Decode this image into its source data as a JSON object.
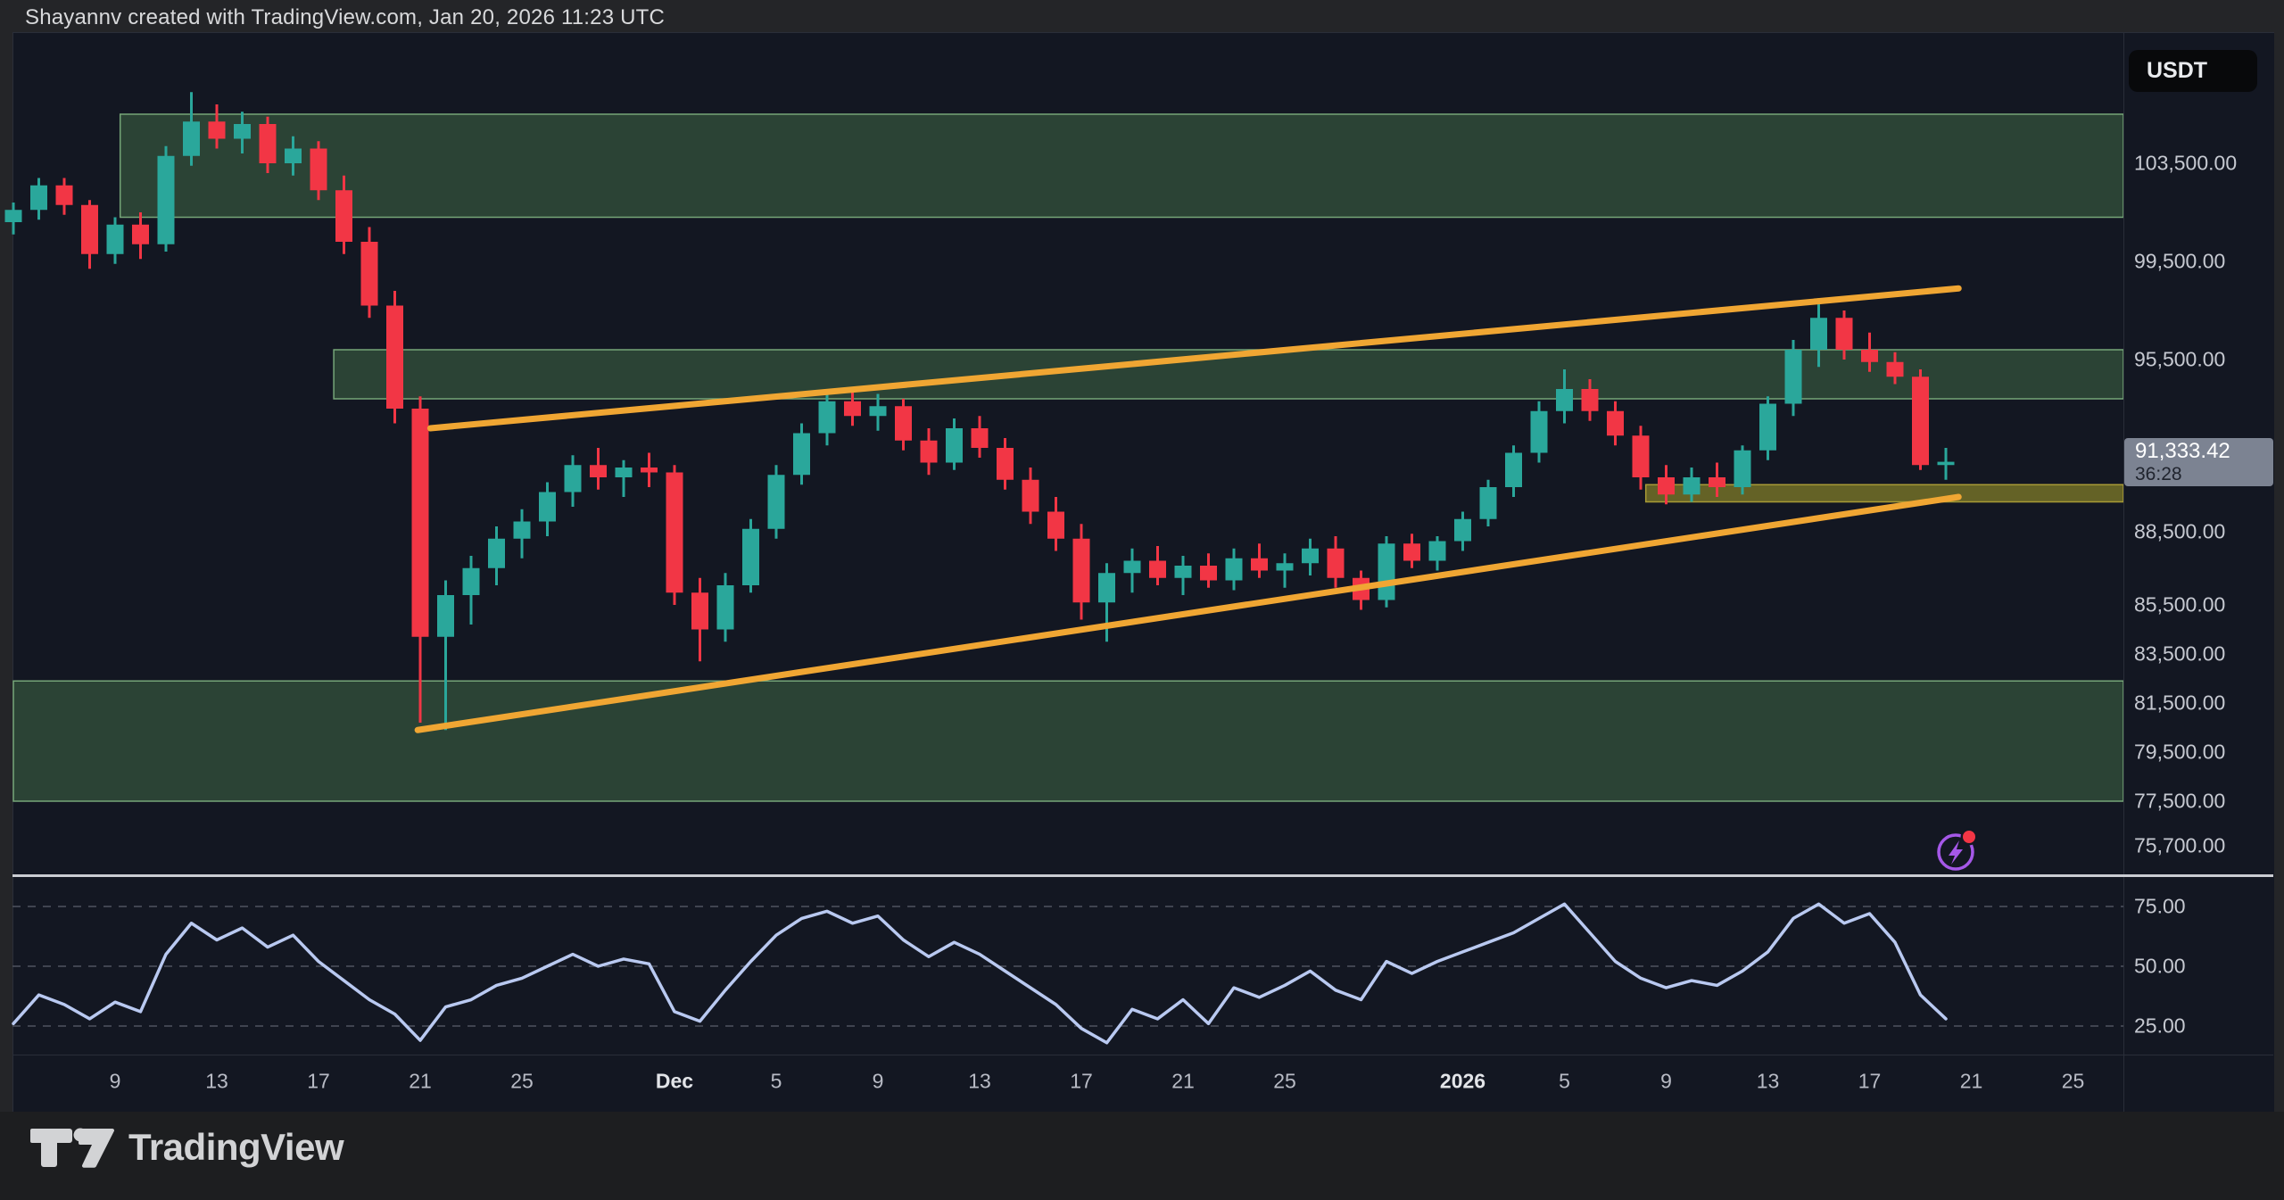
{
  "header": {
    "title": "Shayannv created with TradingView.com, Jan 20, 2026 11:23 UTC"
  },
  "price_scale": {
    "currency_badge": "USDT",
    "last_price": "91,333.42",
    "last_price_value": 91333.42,
    "countdown": "36:28",
    "labels": [
      {
        "text": "103,500.00",
        "value": 103500
      },
      {
        "text": "99,500.00",
        "value": 99500
      },
      {
        "text": "95,500.00",
        "value": 95500
      },
      {
        "text": "88,500.00",
        "value": 88500
      },
      {
        "text": "85,500.00",
        "value": 85500
      },
      {
        "text": "83,500.00",
        "value": 83500
      },
      {
        "text": "81,500.00",
        "value": 81500
      },
      {
        "text": "79,500.00",
        "value": 79500
      },
      {
        "text": "77,500.00",
        "value": 77500
      },
      {
        "text": "75,700.00",
        "value": 75700
      }
    ]
  },
  "rsi_scale": {
    "labels": [
      {
        "text": "75.00",
        "value": 75
      },
      {
        "text": "50.00",
        "value": 50
      },
      {
        "text": "25.00",
        "value": 25
      }
    ]
  },
  "time_axis": {
    "ticks": [
      {
        "label": "9",
        "day": 4,
        "bold": false
      },
      {
        "label": "13",
        "day": 8,
        "bold": false
      },
      {
        "label": "17",
        "day": 12,
        "bold": false
      },
      {
        "label": "21",
        "day": 16,
        "bold": false
      },
      {
        "label": "25",
        "day": 20,
        "bold": false
      },
      {
        "label": "Dec",
        "day": 26,
        "bold": true
      },
      {
        "label": "5",
        "day": 30,
        "bold": false
      },
      {
        "label": "9",
        "day": 34,
        "bold": false
      },
      {
        "label": "13",
        "day": 38,
        "bold": false
      },
      {
        "label": "17",
        "day": 42,
        "bold": false
      },
      {
        "label": "21",
        "day": 46,
        "bold": false
      },
      {
        "label": "25",
        "day": 50,
        "bold": false
      },
      {
        "label": "2026",
        "day": 57,
        "bold": true
      },
      {
        "label": "5",
        "day": 61,
        "bold": false
      },
      {
        "label": "9",
        "day": 65,
        "bold": false
      },
      {
        "label": "13",
        "day": 69,
        "bold": false
      },
      {
        "label": "17",
        "day": 73,
        "bold": false
      },
      {
        "label": "21",
        "day": 77,
        "bold": false
      },
      {
        "label": "25",
        "day": 81,
        "bold": false
      }
    ]
  },
  "footer": {
    "brand": "TradingView"
  },
  "colors": {
    "up": "#2aa79b",
    "down": "#f23645",
    "zone_fill": "rgba(100,170,100,0.30)",
    "zone_border": "#76a678",
    "band_fill": "rgba(200,190,45,0.45)",
    "band_border": "#a89b35",
    "trendline": "#f0a633",
    "rsi_line": "#b9c9f1",
    "grid_dashed": "#4f545f",
    "badge_bg": "#7c8392",
    "plot_bg": "#131722"
  },
  "chart_data": {
    "type": "candlestick",
    "interval": "1D",
    "quote_currency": "USDT",
    "visible_price_range": [
      75700,
      107000
    ],
    "rsi_levels": [
      25,
      50,
      75
    ],
    "legend_position": "none",
    "grid": "rsi-dashed-only",
    "dates": [
      "Nov 5",
      "Nov 6",
      "Nov 7",
      "Nov 8",
      "Nov 9",
      "Nov 10",
      "Nov 11",
      "Nov 12",
      "Nov 13",
      "Nov 14",
      "Nov 15",
      "Nov 16",
      "Nov 17",
      "Nov 18",
      "Nov 19",
      "Nov 20",
      "Nov 21",
      "Nov 22",
      "Nov 23",
      "Nov 24",
      "Nov 25",
      "Nov 26",
      "Nov 27",
      "Nov 28",
      "Nov 29",
      "Nov 30",
      "Dec 1",
      "Dec 2",
      "Dec 3",
      "Dec 4",
      "Dec 5",
      "Dec 6",
      "Dec 7",
      "Dec 8",
      "Dec 9",
      "Dec 10",
      "Dec 11",
      "Dec 12",
      "Dec 13",
      "Dec 14",
      "Dec 15",
      "Dec 16",
      "Dec 17",
      "Dec 18",
      "Dec 19",
      "Dec 20",
      "Dec 21",
      "Dec 22",
      "Dec 23",
      "Dec 24",
      "Dec 25",
      "Dec 26",
      "Dec 27",
      "Dec 28",
      "Dec 29",
      "Dec 30",
      "Dec 31",
      "Jan 1",
      "Jan 2",
      "Jan 3",
      "Jan 4",
      "Jan 5",
      "Jan 6",
      "Jan 7",
      "Jan 8",
      "Jan 9",
      "Jan 10",
      "Jan 11",
      "Jan 12",
      "Jan 13",
      "Jan 14",
      "Jan 15",
      "Jan 16",
      "Jan 17",
      "Jan 18",
      "Jan 19",
      "Jan 20"
    ],
    "candles": [
      [
        101100,
        101900,
        100600,
        101600
      ],
      [
        101600,
        102900,
        101200,
        102600
      ],
      [
        102600,
        102900,
        101400,
        101800
      ],
      [
        101800,
        102000,
        99200,
        99800
      ],
      [
        99800,
        101300,
        99400,
        101000
      ],
      [
        101000,
        101500,
        99600,
        100200
      ],
      [
        100200,
        104200,
        99900,
        103800
      ],
      [
        103800,
        106400,
        103400,
        105200
      ],
      [
        105200,
        105900,
        104100,
        104500
      ],
      [
        104500,
        105600,
        103900,
        105100
      ],
      [
        105100,
        105400,
        103100,
        103500
      ],
      [
        103500,
        104600,
        103000,
        104100
      ],
      [
        104100,
        104400,
        102000,
        102400
      ],
      [
        102400,
        103000,
        99800,
        100300
      ],
      [
        100300,
        100900,
        97200,
        97700
      ],
      [
        97700,
        98300,
        92900,
        93500
      ],
      [
        93500,
        94000,
        80700,
        84200
      ],
      [
        84200,
        86500,
        80400,
        85900
      ],
      [
        85900,
        87500,
        84700,
        87000
      ],
      [
        87000,
        88700,
        86300,
        88200
      ],
      [
        88200,
        89400,
        87400,
        88900
      ],
      [
        88900,
        90500,
        88300,
        90100
      ],
      [
        90100,
        91600,
        89500,
        91200
      ],
      [
        91200,
        91900,
        90200,
        90700
      ],
      [
        90700,
        91400,
        89900,
        91100
      ],
      [
        91100,
        91700,
        90300,
        90900
      ],
      [
        90900,
        91200,
        85500,
        86000
      ],
      [
        86000,
        86600,
        83200,
        84500
      ],
      [
        84500,
        86800,
        84000,
        86300
      ],
      [
        86300,
        89000,
        86000,
        88600
      ],
      [
        88600,
        91200,
        88200,
        90800
      ],
      [
        90800,
        92900,
        90400,
        92500
      ],
      [
        92500,
        94200,
        92000,
        93800
      ],
      [
        93800,
        94300,
        92800,
        93200
      ],
      [
        93200,
        94100,
        92600,
        93600
      ],
      [
        93600,
        93900,
        91800,
        92200
      ],
      [
        92200,
        92700,
        90800,
        91300
      ],
      [
        91300,
        93100,
        91000,
        92700
      ],
      [
        92700,
        93200,
        91500,
        91900
      ],
      [
        91900,
        92300,
        90200,
        90600
      ],
      [
        90600,
        91100,
        88800,
        89300
      ],
      [
        89300,
        89900,
        87700,
        88200
      ],
      [
        88200,
        88800,
        84900,
        85600
      ],
      [
        85600,
        87200,
        84000,
        86800
      ],
      [
        86800,
        87800,
        86000,
        87300
      ],
      [
        87300,
        87900,
        86300,
        86600
      ],
      [
        86600,
        87500,
        85900,
        87100
      ],
      [
        87100,
        87600,
        86200,
        86500
      ],
      [
        86500,
        87800,
        86100,
        87400
      ],
      [
        87400,
        88000,
        86600,
        86900
      ],
      [
        86900,
        87600,
        86200,
        87200
      ],
      [
        87200,
        88200,
        86700,
        87800
      ],
      [
        87800,
        88300,
        86200,
        86600
      ],
      [
        86600,
        86900,
        85300,
        85700
      ],
      [
        85700,
        88300,
        85400,
        88000
      ],
      [
        88000,
        88400,
        87000,
        87300
      ],
      [
        87300,
        88300,
        86900,
        88100
      ],
      [
        88100,
        89300,
        87700,
        89000
      ],
      [
        89000,
        90600,
        88700,
        90300
      ],
      [
        90300,
        92000,
        89900,
        91700
      ],
      [
        91700,
        93800,
        91300,
        93400
      ],
      [
        93400,
        95100,
        92900,
        94300
      ],
      [
        94300,
        94700,
        93000,
        93400
      ],
      [
        93400,
        93800,
        92000,
        92400
      ],
      [
        92400,
        92800,
        90200,
        90700
      ],
      [
        90700,
        91200,
        89600,
        90000
      ],
      [
        90000,
        91100,
        89700,
        90700
      ],
      [
        90700,
        91300,
        89900,
        90300
      ],
      [
        90300,
        92000,
        90000,
        91800
      ],
      [
        91800,
        94000,
        91400,
        93700
      ],
      [
        93700,
        96300,
        93200,
        95900
      ],
      [
        95900,
        98000,
        95200,
        97200
      ],
      [
        97200,
        97500,
        95500,
        95900
      ],
      [
        95900,
        96600,
        95000,
        95400
      ],
      [
        95400,
        95800,
        94500,
        94800
      ],
      [
        94800,
        95100,
        91000,
        91200
      ],
      [
        91200,
        91900,
        90600,
        91333.42
      ]
    ],
    "rsi": [
      26,
      38,
      34,
      28,
      35,
      31,
      55,
      68,
      61,
      66,
      58,
      63,
      52,
      44,
      36,
      30,
      19,
      33,
      36,
      42,
      45,
      50,
      55,
      50,
      53,
      51,
      31,
      27,
      40,
      52,
      63,
      70,
      73,
      68,
      71,
      61,
      54,
      60,
      55,
      48,
      41,
      34,
      24,
      18,
      32,
      28,
      36,
      26,
      41,
      37,
      42,
      48,
      40,
      36,
      52,
      47,
      52,
      56,
      60,
      64,
      70,
      76,
      64,
      52,
      45,
      41,
      44,
      42,
      48,
      56,
      70,
      76,
      68,
      72,
      60,
      38,
      28
    ],
    "zones": [
      {
        "name": "upper-resistance-zone",
        "from_day": 4.2,
        "price_top": 105500,
        "price_bottom": 101300,
        "style": "green"
      },
      {
        "name": "mid-resistance-zone",
        "from_day": 12.6,
        "price_top": 95900,
        "price_bottom": 93900,
        "style": "green"
      },
      {
        "name": "lower-support-zone",
        "from_day": 0,
        "price_top": 82400,
        "price_bottom": 77500,
        "style": "green"
      },
      {
        "name": "near-support-band",
        "from_day": 64.2,
        "price_top": 90400,
        "price_bottom": 89700,
        "style": "olive"
      }
    ],
    "trendlines": [
      {
        "name": "upper-trendline",
        "from_day": 16.4,
        "price_from": 92700,
        "to_day": 76.5,
        "price_to": 98400
      },
      {
        "name": "lower-trendline",
        "from_day": 15.9,
        "price_from": 80400,
        "to_day": 76.5,
        "price_to": 89900
      }
    ],
    "last_price": 91333.42
  }
}
